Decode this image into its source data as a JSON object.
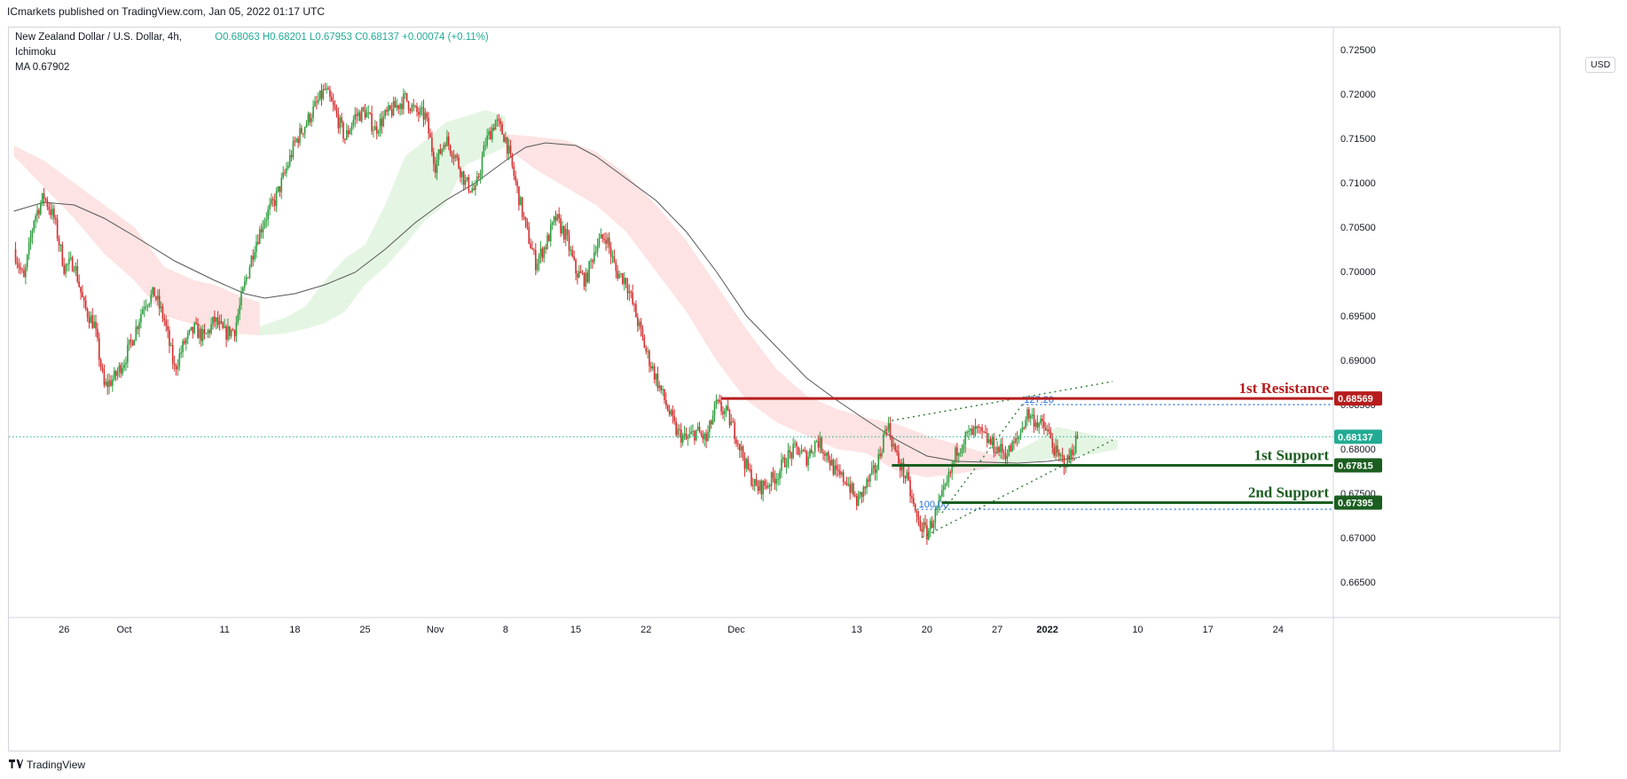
{
  "publisher": "ICmarkets published on TradingView.com, Jan 05, 2022 01:17 UTC",
  "brand": "TradingView",
  "legend": {
    "symbol": "New Zealand Dollar / U.S. Dollar, 4h,",
    "ohlc": "O0.68063  H0.68201  L0.67953  C0.68137  +0.00074 (+0.11%)",
    "indicator1": "Ichimoku",
    "indicator2": "MA  0.67902"
  },
  "currency": "USD",
  "colors": {
    "up": "#22ab94",
    "down": "#f23645",
    "up_body": "#2e9e3e",
    "down_body": "#d32f2f",
    "resistance": "#b71c1c",
    "support": "#1b5e20",
    "ma": "#555555",
    "cloud_bull": "#e5f5e3",
    "cloud_bear": "#fde3e3",
    "fib": "#1e6fd9"
  },
  "chart_data": {
    "type": "candlestick",
    "symbol": "NZDUSD",
    "timeframe": "4h",
    "ylim": [
      0.661,
      0.7275
    ],
    "y_ticks": [
      "0.72500",
      "0.72000",
      "0.71500",
      "0.71000",
      "0.70500",
      "0.70000",
      "0.69500",
      "0.69000",
      "0.68500",
      "0.68000",
      "0.67500",
      "0.67000",
      "0.66500"
    ],
    "x_ticks": [
      "26",
      "Oct",
      "11",
      "18",
      "25",
      "Nov",
      "8",
      "15",
      "22",
      "Dec",
      "13",
      "20",
      "27",
      "2022",
      "10",
      "17",
      "24"
    ],
    "x_tick_days": [
      -6,
      0,
      10,
      17,
      24,
      31,
      38,
      45,
      52,
      61,
      73,
      80,
      87,
      92,
      101,
      108,
      115
    ],
    "last_day": 95.0,
    "current_price": {
      "value": 0.68137,
      "label": "0.68137"
    },
    "price_path": [
      [
        -11,
        0.7025
      ],
      [
        -10,
        0.699
      ],
      [
        -9,
        0.706
      ],
      [
        -8,
        0.7085
      ],
      [
        -7,
        0.706
      ],
      [
        -6,
        0.7005
      ],
      [
        -5,
        0.701
      ],
      [
        -4,
        0.696
      ],
      [
        -3,
        0.694
      ],
      [
        -2,
        0.687
      ],
      [
        -1,
        0.688
      ],
      [
        0,
        0.69
      ],
      [
        1,
        0.693
      ],
      [
        2,
        0.6965
      ],
      [
        3,
        0.6975
      ],
      [
        4,
        0.6945
      ],
      [
        5,
        0.689
      ],
      [
        6,
        0.692
      ],
      [
        7,
        0.6935
      ],
      [
        8,
        0.6925
      ],
      [
        9,
        0.6945
      ],
      [
        10,
        0.693
      ],
      [
        11,
        0.6935
      ],
      [
        12,
        0.6985
      ],
      [
        13,
        0.703
      ],
      [
        14,
        0.706
      ],
      [
        15,
        0.708
      ],
      [
        16,
        0.711
      ],
      [
        17,
        0.7145
      ],
      [
        18,
        0.7165
      ],
      [
        19,
        0.7185
      ],
      [
        20,
        0.7205
      ],
      [
        21,
        0.718
      ],
      [
        22,
        0.715
      ],
      [
        23,
        0.7175
      ],
      [
        24,
        0.718
      ],
      [
        25,
        0.716
      ],
      [
        26,
        0.7175
      ],
      [
        27,
        0.7185
      ],
      [
        28,
        0.7195
      ],
      [
        29,
        0.718
      ],
      [
        30,
        0.7175
      ],
      [
        31,
        0.712
      ],
      [
        32,
        0.715
      ],
      [
        33,
        0.713
      ],
      [
        34,
        0.71
      ],
      [
        35,
        0.709
      ],
      [
        36,
        0.7145
      ],
      [
        37,
        0.717
      ],
      [
        38,
        0.715
      ],
      [
        39,
        0.71
      ],
      [
        40,
        0.705
      ],
      [
        41,
        0.701
      ],
      [
        42,
        0.703
      ],
      [
        43,
        0.706
      ],
      [
        44,
        0.704
      ],
      [
        45,
        0.7
      ],
      [
        46,
        0.699
      ],
      [
        47,
        0.703
      ],
      [
        48,
        0.704
      ],
      [
        49,
        0.7
      ],
      [
        50,
        0.699
      ],
      [
        51,
        0.695
      ],
      [
        52,
        0.691
      ],
      [
        53,
        0.688
      ],
      [
        54,
        0.685
      ],
      [
        55,
        0.682
      ],
      [
        56,
        0.681
      ],
      [
        57,
        0.682
      ],
      [
        58,
        0.681
      ],
      [
        59,
        0.685
      ],
      [
        60,
        0.684
      ],
      [
        61,
        0.6815
      ],
      [
        62,
        0.678
      ],
      [
        63,
        0.6755
      ],
      [
        64,
        0.676
      ],
      [
        65,
        0.677
      ],
      [
        66,
        0.679
      ],
      [
        67,
        0.68
      ],
      [
        68,
        0.679
      ],
      [
        69,
        0.681
      ],
      [
        70,
        0.6795
      ],
      [
        71,
        0.677
      ],
      [
        72,
        0.6765
      ],
      [
        73,
        0.674
      ],
      [
        74,
        0.676
      ],
      [
        75,
        0.678
      ],
      [
        76,
        0.683
      ],
      [
        77,
        0.679
      ],
      [
        78,
        0.6765
      ],
      [
        79,
        0.672
      ],
      [
        80,
        0.6705
      ],
      [
        81,
        0.673
      ],
      [
        82,
        0.676
      ],
      [
        83,
        0.68
      ],
      [
        84,
        0.6815
      ],
      [
        85,
        0.682
      ],
      [
        86,
        0.681
      ],
      [
        87,
        0.68
      ],
      [
        88,
        0.6795
      ],
      [
        89,
        0.681
      ],
      [
        90,
        0.684
      ],
      [
        91,
        0.683
      ],
      [
        92,
        0.682
      ],
      [
        93,
        0.679
      ],
      [
        94,
        0.6785
      ],
      [
        95,
        0.68137
      ]
    ],
    "ma_path": [
      [
        -11,
        0.7068
      ],
      [
        -8,
        0.7078
      ],
      [
        -5,
        0.7075
      ],
      [
        -2,
        0.706
      ],
      [
        1,
        0.704
      ],
      [
        5,
        0.7012
      ],
      [
        9,
        0.699
      ],
      [
        12,
        0.6975
      ],
      [
        14,
        0.697
      ],
      [
        17,
        0.6975
      ],
      [
        20,
        0.6985
      ],
      [
        23,
        0.6999
      ],
      [
        26,
        0.7025
      ],
      [
        29,
        0.7055
      ],
      [
        32,
        0.708
      ],
      [
        35,
        0.71
      ],
      [
        38,
        0.7125
      ],
      [
        40,
        0.714
      ],
      [
        42,
        0.7145
      ],
      [
        45,
        0.7142
      ],
      [
        47,
        0.713
      ],
      [
        50,
        0.7105
      ],
      [
        53,
        0.708
      ],
      [
        56,
        0.7045
      ],
      [
        59,
        0.7
      ],
      [
        62,
        0.695
      ],
      [
        65,
        0.6915
      ],
      [
        68,
        0.688
      ],
      [
        71,
        0.6855
      ],
      [
        74,
        0.6832
      ],
      [
        77,
        0.681
      ],
      [
        80,
        0.6792
      ],
      [
        83,
        0.6786
      ],
      [
        86,
        0.6785
      ],
      [
        89,
        0.6784
      ],
      [
        92,
        0.6786
      ],
      [
        95,
        0.67902
      ]
    ],
    "cloud_bull": [
      {
        "x": [
          13.5,
          16,
          18,
          20,
          22,
          24,
          26,
          28,
          30,
          32,
          34,
          36,
          38
        ],
        "top": [
          0.6938,
          0.6948,
          0.696,
          0.699,
          0.7015,
          0.703,
          0.7075,
          0.713,
          0.7148,
          0.7168,
          0.7175,
          0.7182,
          0.7175
        ],
        "bottom": [
          0.6928,
          0.693,
          0.6935,
          0.6942,
          0.6955,
          0.6985,
          0.7005,
          0.703,
          0.7058,
          0.7075,
          0.712,
          0.713,
          0.714
        ]
      },
      {
        "x": [
          87,
          89,
          91,
          93,
          95,
          97,
          99
        ],
        "top": [
          0.6792,
          0.6798,
          0.681,
          0.6825,
          0.682,
          0.6815,
          0.681
        ],
        "bottom": [
          0.678,
          0.6785,
          0.6786,
          0.679,
          0.6792,
          0.6795,
          0.68
        ]
      }
    ],
    "cloud_bear": [
      {
        "x": [
          -11,
          -8,
          -5,
          -2,
          1,
          4,
          7,
          9,
          11,
          13.5
        ],
        "top": [
          0.7142,
          0.7125,
          0.71,
          0.7075,
          0.705,
          0.7005,
          0.699,
          0.6985,
          0.6975,
          0.6965
        ],
        "bottom": [
          0.713,
          0.7095,
          0.706,
          0.702,
          0.699,
          0.695,
          0.694,
          0.6935,
          0.693,
          0.6928
        ]
      },
      {
        "x": [
          38,
          41,
          44,
          47,
          50,
          53,
          56,
          59,
          62,
          65,
          68,
          71,
          74,
          77,
          80,
          83,
          86,
          87
        ],
        "top": [
          0.7155,
          0.7152,
          0.7148,
          0.7135,
          0.711,
          0.7075,
          0.7035,
          0.6985,
          0.6935,
          0.689,
          0.686,
          0.6845,
          0.6835,
          0.6828,
          0.6815,
          0.6805,
          0.6795,
          0.6792
        ],
        "bottom": [
          0.714,
          0.7115,
          0.7095,
          0.7075,
          0.7045,
          0.7,
          0.6955,
          0.69,
          0.6855,
          0.683,
          0.6815,
          0.68,
          0.6795,
          0.6775,
          0.6768,
          0.6772,
          0.6778,
          0.678
        ]
      }
    ],
    "levels": [
      {
        "name": "1st Resistance",
        "value": 0.68569,
        "label": "0.68569",
        "color": "#b71c1c",
        "from_day": 59.5
      },
      {
        "name": "1st Support",
        "value": 0.67815,
        "label": "0.67815",
        "color": "#1b5e20",
        "from_day": 76.5
      },
      {
        "name": "2nd Support",
        "value": 0.67395,
        "label": "0.67395",
        "color": "#1b5e20",
        "from_day": 81.5
      }
    ],
    "fib": [
      {
        "label": "100.00",
        "value": 0.6732,
        "from_day": 79.0
      },
      {
        "label": "127.20",
        "value": 0.685,
        "from_day": 89.5
      }
    ],
    "dotted_trend": [
      {
        "from": [
          76.5,
          0.6832
        ],
        "to": [
          98.5,
          0.6876
        ]
      },
      {
        "from": [
          79.5,
          0.67
        ],
        "to": [
          98.5,
          0.681
        ]
      },
      {
        "from": [
          81.5,
          0.6728
        ],
        "to": [
          89.5,
          0.685
        ]
      }
    ]
  }
}
